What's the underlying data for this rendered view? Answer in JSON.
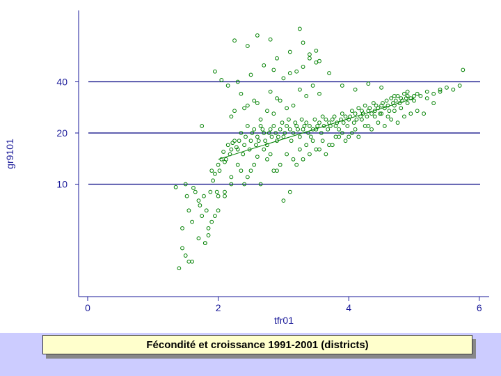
{
  "colors": {
    "axis": "#1a1a99",
    "grid": "#000080",
    "marker": "#008000",
    "band": "#ccccff",
    "caption_bg": "#ffffcc"
  },
  "caption": "Fécondité et croissance 1991-2001 (districts)",
  "chart_data": {
    "type": "scatter",
    "title": "Fécondité et croissance 1991-2001 (districts)",
    "xlabel": "tfr01",
    "ylabel": "gr9101",
    "xlim": [
      0,
      6.2
    ],
    "y_scale": "log",
    "ylim": [
      2.6,
      115
    ],
    "x_ticks": [
      0,
      2,
      4,
      6
    ],
    "x_tick_labels": [
      "0",
      "2",
      "4",
      "6"
    ],
    "y_ticks": [
      10,
      20,
      40
    ],
    "y_tick_labels": [
      "10",
      "20",
      "40"
    ],
    "grid": true,
    "marker": "hollow-circle",
    "fit_line": {
      "x": [
        2.0,
        5.0
      ],
      "y": [
        14,
        32
      ]
    },
    "points": {
      "x": [
        1.35,
        1.45,
        1.5,
        1.52,
        1.55,
        1.6,
        1.62,
        1.65,
        1.7,
        1.72,
        1.75,
        1.78,
        1.8,
        1.82,
        1.85,
        1.88,
        1.9,
        1.92,
        1.95,
        1.98,
        2.0,
        2.02,
        2.05,
        2.08,
        2.1,
        2.12,
        2.15,
        2.18,
        2.2,
        2.22,
        2.25,
        2.28,
        2.3,
        2.32,
        2.35,
        2.38,
        2.4,
        2.42,
        2.45,
        2.48,
        2.5,
        2.52,
        2.55,
        2.58,
        2.6,
        2.62,
        2.65,
        2.68,
        2.7,
        2.72,
        2.75,
        2.78,
        2.8,
        2.82,
        2.85,
        2.88,
        2.9,
        2.92,
        2.95,
        2.98,
        3.0,
        3.02,
        3.05,
        3.08,
        3.1,
        3.12,
        3.15,
        3.18,
        3.2,
        3.22,
        3.25,
        3.28,
        3.3,
        3.32,
        3.35,
        3.38,
        3.4,
        3.42,
        3.45,
        3.48,
        3.5,
        3.52,
        3.55,
        3.58,
        3.6,
        3.62,
        3.65,
        3.68,
        3.7,
        3.72,
        3.75,
        3.78,
        3.8,
        3.82,
        3.85,
        3.88,
        3.9,
        3.92,
        3.95,
        3.98,
        4.0,
        4.02,
        4.05,
        4.08,
        4.1,
        4.12,
        4.15,
        4.18,
        4.2,
        4.22,
        4.25,
        4.28,
        4.3,
        4.32,
        4.35,
        4.38,
        4.4,
        4.42,
        4.45,
        4.48,
        4.5,
        4.52,
        4.55,
        4.58,
        4.6,
        4.62,
        4.65,
        4.68,
        4.7,
        4.72,
        4.75,
        4.78,
        4.8,
        4.82,
        4.85,
        4.88,
        4.9,
        4.95,
        5.0,
        5.05,
        5.1,
        5.2,
        5.3,
        5.4,
        5.5,
        5.6,
        5.7,
        5.75,
        1.45,
        1.6,
        1.7,
        1.85,
        1.95,
        2.0,
        2.1,
        2.2,
        2.3,
        2.4,
        2.5,
        2.6,
        2.7,
        2.8,
        2.9,
        3.0,
        3.1,
        3.2,
        3.3,
        3.4,
        3.5,
        3.6,
        3.7,
        3.8,
        3.9,
        4.0,
        4.1,
        4.2,
        4.3,
        4.4,
        4.5,
        4.6,
        4.7,
        4.8,
        4.9,
        5.0,
        5.2,
        5.4,
        2.3,
        2.5,
        2.7,
        2.9,
        3.1,
        3.3,
        3.5,
        3.7,
        3.9,
        4.1,
        4.3,
        4.5,
        4.7,
        4.9,
        1.9,
        2.0,
        2.1,
        2.2,
        2.35,
        2.45,
        2.55,
        2.65,
        2.75,
        2.85,
        2.95,
        3.05,
        3.15,
        3.25,
        3.35,
        3.45,
        3.55,
        3.65,
        3.75,
        3.85,
        3.95,
        4.05,
        4.15,
        4.25,
        4.35,
        4.45,
        4.55,
        4.65,
        4.75,
        4.85,
        4.95,
        5.05,
        5.15,
        5.3,
        2.2,
        2.4,
        2.6,
        2.8,
        3.0,
        3.2,
        3.4,
        2.9,
        3.05,
        2.75,
        2.55,
        2.35,
        2.15,
        2.05,
        1.95,
        1.75,
        1.55,
        1.4,
        1.5,
        1.8,
        2.65,
        2.85,
        3.15,
        3.35,
        3.45,
        3.25,
        2.45,
        2.25,
        2.95,
        3.55
      ],
      "y": [
        9.6,
        5.5,
        10,
        8.5,
        7,
        6,
        9.5,
        9,
        8,
        7.5,
        6.5,
        8.5,
        4.5,
        7,
        5,
        9,
        12,
        10.5,
        11.5,
        9,
        13,
        12,
        14,
        15.5,
        13.5,
        14,
        17,
        15,
        16,
        17.5,
        18,
        16.5,
        16,
        18,
        20,
        15,
        17,
        19,
        22,
        16,
        18,
        20,
        21,
        17,
        19,
        18,
        22,
        21,
        20,
        18,
        17,
        20,
        21,
        19,
        22,
        20,
        18,
        19,
        21,
        23,
        19,
        20,
        22,
        24,
        21,
        18,
        20,
        23,
        22,
        21,
        19,
        24,
        21,
        22,
        23,
        20,
        22,
        19,
        21,
        24,
        21,
        22,
        23,
        20,
        25,
        22,
        24,
        21,
        23,
        22,
        24,
        25,
        22,
        23,
        21,
        24,
        26,
        23,
        25,
        22,
        24,
        25,
        27,
        23,
        26,
        24,
        28,
        25,
        27,
        26,
        29,
        25,
        27,
        28,
        26,
        30,
        27,
        29,
        28,
        26,
        29,
        30,
        28,
        31,
        29,
        27,
        32,
        30,
        29,
        31,
        33,
        30,
        32,
        31,
        34,
        32,
        33,
        32,
        33,
        34,
        33,
        35,
        34,
        36,
        37,
        36,
        38,
        47,
        4.2,
        3.5,
        4.8,
        5.5,
        6.5,
        7,
        8.5,
        11,
        13,
        10,
        12,
        14.5,
        16,
        15,
        12,
        8,
        9,
        13,
        14,
        15,
        16,
        18,
        17,
        19,
        20,
        19,
        21,
        24,
        22,
        25,
        26,
        25,
        27,
        28,
        30,
        31,
        32,
        35,
        40,
        44,
        50,
        55,
        60,
        68,
        52,
        45,
        38,
        36,
        39,
        37,
        33,
        35,
        6,
        8.5,
        9,
        10,
        12,
        11,
        13,
        10,
        14,
        12,
        13,
        15,
        14,
        16,
        17,
        18,
        16,
        15,
        17,
        19,
        18,
        20,
        19,
        22,
        21,
        23,
        22,
        24,
        23,
        25,
        26,
        27,
        26,
        30,
        25,
        28,
        30,
        35,
        42,
        46,
        55,
        32,
        28,
        27,
        31,
        34,
        38,
        41,
        46,
        22,
        3.5,
        3.2,
        3.8,
        4.5,
        24,
        26,
        29,
        33,
        38,
        36,
        29,
        27,
        31,
        34
      ],
      "y_extra_high": [
        70,
        65,
        75,
        82,
        58,
        53,
        49,
        47,
        45,
        71,
        61
      ],
      "x_extra_high": [
        2.25,
        2.45,
        2.6,
        3.25,
        3.4,
        3.55,
        3.3,
        2.85,
        3.1,
        2.8,
        3.5
      ]
    }
  }
}
